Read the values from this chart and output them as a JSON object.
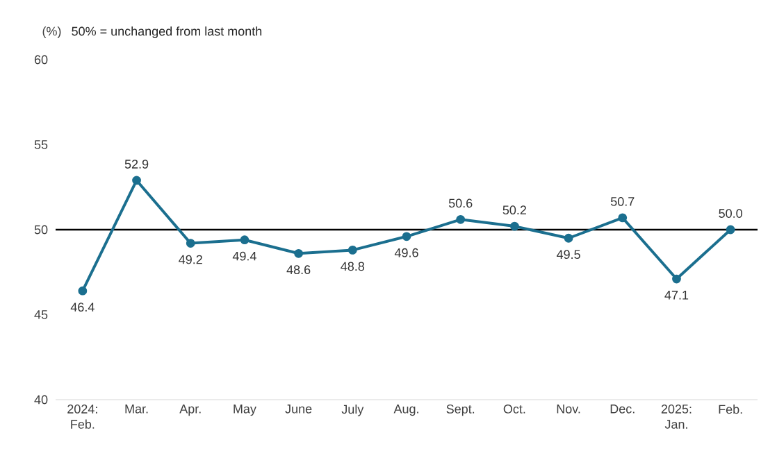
{
  "chart_data": {
    "type": "line",
    "ylabel": "(%)",
    "annotations": [
      "50% = unchanged from last month"
    ],
    "categories": [
      "2024: Feb.",
      "Mar.",
      "Apr.",
      "May",
      "June",
      "July",
      "Aug.",
      "Sept.",
      "Oct.",
      "Nov.",
      "Dec.",
      "2025: Jan.",
      "Feb."
    ],
    "series": [
      {
        "color": "#1b6f8f",
        "values": [
          46.4,
          52.9,
          49.2,
          49.4,
          48.6,
          48.8,
          49.6,
          50.6,
          50.2,
          49.5,
          50.7,
          47.1,
          50.0
        ],
        "value_labels": [
          "46.4",
          "52.9",
          "49.2",
          "49.4",
          "48.6",
          "48.8",
          "49.6",
          "50.6",
          "50.2",
          "49.5",
          "50.7",
          "47.1",
          "50.0"
        ]
      }
    ],
    "ylim": [
      40,
      60
    ],
    "yticks": [
      40,
      45,
      50,
      55,
      60
    ],
    "marker": "circle",
    "line_style": "solid",
    "ref_lines": [
      {
        "axis": "y",
        "value": 50,
        "color": "#000000"
      }
    ]
  }
}
